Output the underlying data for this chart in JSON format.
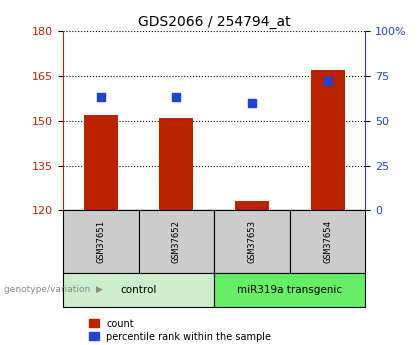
{
  "title": "GDS2066 / 254794_at",
  "samples": [
    "GSM37651",
    "GSM37652",
    "GSM37653",
    "GSM37654"
  ],
  "bar_values": [
    152,
    151,
    123,
    167
  ],
  "percentile_values": [
    63,
    63,
    60,
    72
  ],
  "ylim_left": [
    120,
    180
  ],
  "yticks_left": [
    120,
    135,
    150,
    165,
    180
  ],
  "ylim_right": [
    0,
    100
  ],
  "yticks_right": [
    0,
    25,
    50,
    75,
    100
  ],
  "bar_color": "#bb2200",
  "percentile_color": "#2244cc",
  "bar_width": 0.45,
  "groups": [
    {
      "label": "control",
      "samples": [
        0,
        1
      ],
      "color": "#cceecc"
    },
    {
      "label": "miR319a transgenic",
      "samples": [
        2,
        3
      ],
      "color": "#66ee66"
    }
  ],
  "genotype_label": "genotype/variation",
  "legend_count": "count",
  "legend_percentile": "percentile rank within the sample",
  "background_color": "#ffffff"
}
